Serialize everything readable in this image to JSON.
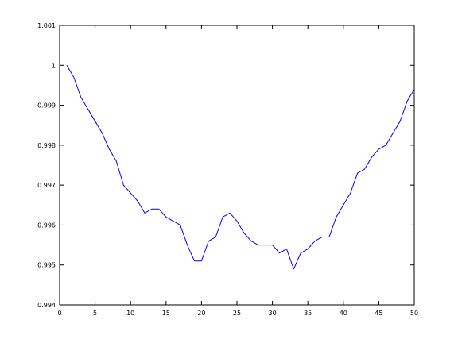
{
  "chart_data": {
    "type": "line",
    "title": "",
    "xlabel": "",
    "ylabel": "",
    "xlim": [
      0,
      50
    ],
    "ylim": [
      0.994,
      1.001
    ],
    "grid": false,
    "legend": "none",
    "x_ticks": [
      0,
      5,
      10,
      15,
      20,
      25,
      30,
      35,
      40,
      45,
      50
    ],
    "x_tick_labels": [
      "0",
      "5",
      "10",
      "15",
      "20",
      "25",
      "30",
      "35",
      "40",
      "45",
      "50"
    ],
    "y_ticks": [
      0.994,
      0.995,
      0.996,
      0.997,
      0.998,
      0.999,
      1.0,
      1.001
    ],
    "y_tick_labels": [
      "0.994",
      "0.995",
      "0.996",
      "0.997",
      "0.998",
      "0.999",
      "1",
      "1.001"
    ],
    "colors": {
      "line": "#0000ff",
      "axes": "#000000",
      "background": "#ffffff"
    },
    "series": [
      {
        "x": [
          1,
          2,
          3,
          4,
          5,
          6,
          7,
          8,
          9,
          10,
          11,
          12,
          13,
          14,
          15,
          16,
          17,
          18,
          19,
          20,
          21,
          22,
          23,
          24,
          25,
          26,
          27,
          28,
          29,
          30,
          31,
          32,
          33,
          34,
          35,
          36,
          37,
          38,
          39,
          40,
          41,
          42,
          43,
          44,
          45,
          46,
          47,
          48,
          49,
          50
        ],
        "values": [
          1.0,
          0.9997,
          0.9992,
          0.9989,
          0.9986,
          0.9983,
          0.9979,
          0.9976,
          0.997,
          0.9968,
          0.9966,
          0.9963,
          0.9964,
          0.9964,
          0.9962,
          0.9961,
          0.996,
          0.9955,
          0.9951,
          0.9951,
          0.9956,
          0.9957,
          0.9962,
          0.9963,
          0.9961,
          0.9958,
          0.9956,
          0.9955,
          0.9955,
          0.9955,
          0.9953,
          0.9954,
          0.9949,
          0.9953,
          0.9954,
          0.9956,
          0.9957,
          0.9957,
          0.9962,
          0.9965,
          0.9968,
          0.9973,
          0.9974,
          0.9977,
          0.9979,
          0.998,
          0.9983,
          0.9986,
          0.9991,
          0.9994
        ]
      }
    ]
  }
}
